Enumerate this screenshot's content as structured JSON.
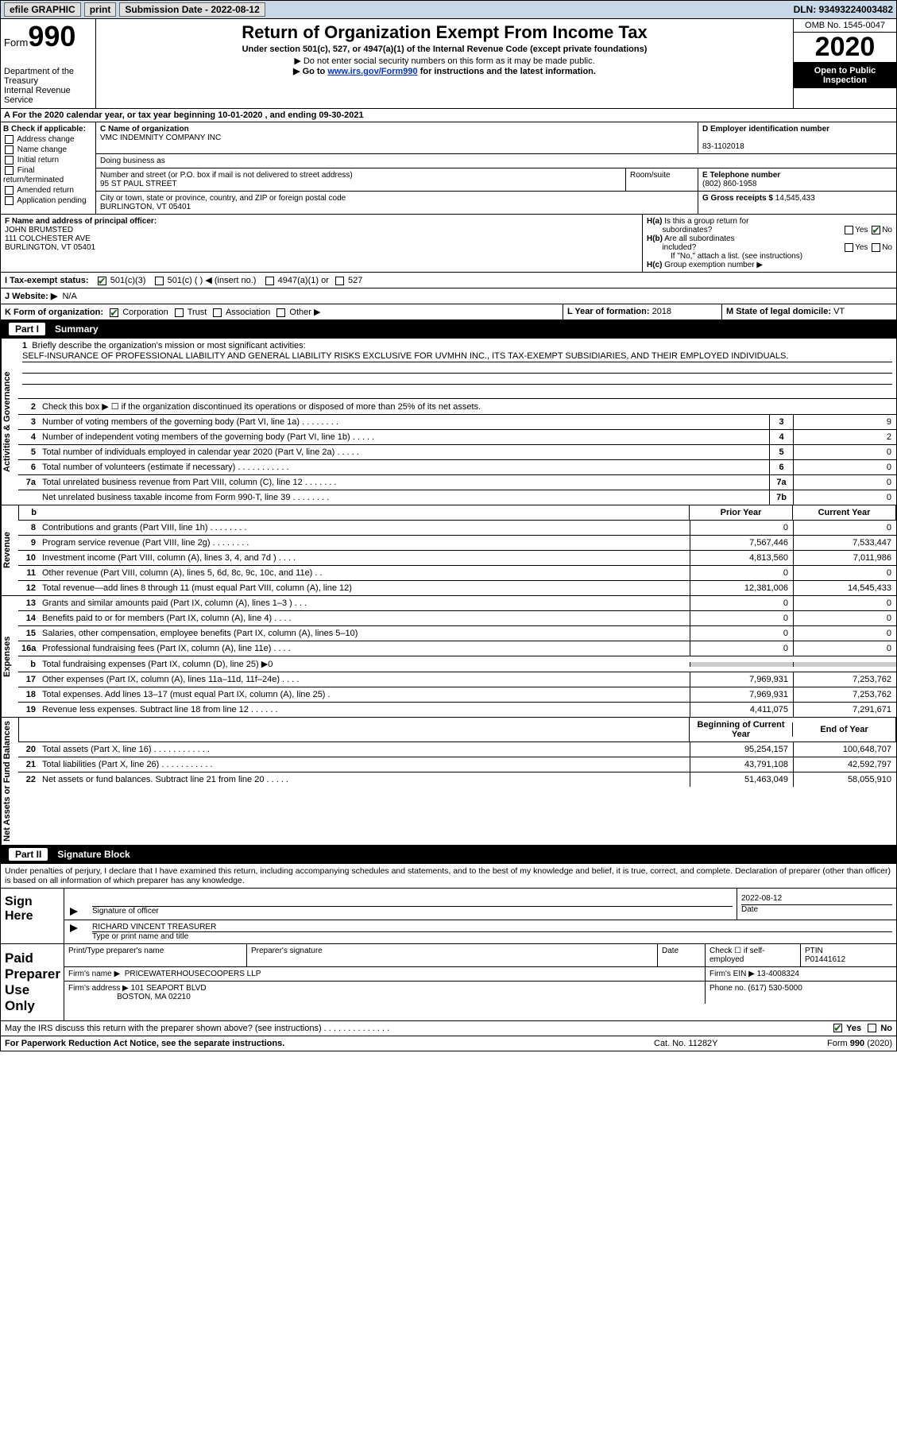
{
  "topbar": {
    "efile": "efile GRAPHIC",
    "print": "print",
    "sub_date_label": "Submission Date - 2022-08-12",
    "dln": "DLN: 93493224003482"
  },
  "header": {
    "form": "Form",
    "num": "990",
    "dept": "Department of the Treasury",
    "irs": "Internal Revenue Service",
    "title": "Return of Organization Exempt From Income Tax",
    "subtitle": "Under section 501(c), 527, or 4947(a)(1) of the Internal Revenue Code (except private foundations)",
    "note1": "▶ Do not enter social security numbers on this form as it may be made public.",
    "note2_pre": "▶ Go to ",
    "note2_link": "www.irs.gov/Form990",
    "note2_post": " for instructions and the latest information.",
    "omb": "OMB No. 1545-0047",
    "year": "2020",
    "inspect": "Open to Public Inspection"
  },
  "calendar": "A For the 2020 calendar year, or tax year beginning 10-01-2020    , and ending 09-30-2021",
  "section_b": {
    "label": "B Check if applicable:",
    "addr": "Address change",
    "name": "Name change",
    "initial": "Initial return",
    "final": "Final return/terminated",
    "amended": "Amended return",
    "app": "Application pending"
  },
  "org": {
    "c_label": "C Name of organization",
    "name": "VMC INDEMNITY COMPANY INC",
    "dba": "Doing business as",
    "addr_label": "Number and street (or P.O. box if mail is not delivered to street address)",
    "room_label": "Room/suite",
    "addr": "95 ST PAUL STREET",
    "city_label": "City or town, state or province, country, and ZIP or foreign postal code",
    "city": "BURLINGTON, VT  05401"
  },
  "right_info": {
    "d_label": "D Employer identification number",
    "ein": "83-1102018",
    "e_label": "E Telephone number",
    "phone": "(802) 860-1958",
    "g_label": "G Gross receipts $",
    "gross": "14,545,433"
  },
  "officer": {
    "f_label": "F Name and address of principal officer:",
    "name": "JOHN BRUMSTED",
    "addr1": "111 COLCHESTER AVE",
    "addr2": "BURLINGTON, VT  05401"
  },
  "h_block": {
    "ha": "H(a)  Is this a group return for subordinates?",
    "hb": "H(b)  Are all subordinates included?",
    "hb_note": "If \"No,\" attach a list. (see instructions)",
    "hc": "H(c)  Group exemption number ▶",
    "yes": "Yes",
    "no": "No"
  },
  "i_row": {
    "label": "I   Tax-exempt status:",
    "c3": "501(c)(3)",
    "c": "501(c) (  ) ◀ (insert no.)",
    "a1": "4947(a)(1) or",
    "527": "527"
  },
  "j_row": {
    "label": "J   Website: ▶",
    "val": "N/A"
  },
  "k_row": {
    "label": "K Form of organization:",
    "corp": "Corporation",
    "trust": "Trust",
    "assoc": "Association",
    "other": "Other ▶",
    "l_label": "L Year of formation:",
    "l_val": "2018",
    "m_label": "M State of legal domicile:",
    "m_val": "VT"
  },
  "parts": {
    "p1": "Part I",
    "p1_title": "Summary",
    "p2": "Part II",
    "p2_title": "Signature Block"
  },
  "vtabs": {
    "gov": "Activities & Governance",
    "rev": "Revenue",
    "exp": "Expenses",
    "net": "Net Assets or Fund Balances"
  },
  "line1": {
    "num": "1",
    "label": "Briefly describe the organization's mission or most significant activities:",
    "text": "SELF-INSURANCE OF PROFESSIONAL LIABILITY AND GENERAL LIABILITY RISKS EXCLUSIVE FOR UVMHN INC., ITS TAX-EXEMPT SUBSIDIARIES, AND THEIR EMPLOYED INDIVIDUALS."
  },
  "line2": {
    "num": "2",
    "label": "Check this box ▶ ☐  if the organization discontinued its operations or disposed of more than 25% of its net assets."
  },
  "gov_lines": [
    {
      "n": "3",
      "d": "Number of voting members of the governing body (Part VI, line 1a)  .    .    .    .    .    .    .    .",
      "b": "3",
      "v": "9"
    },
    {
      "n": "4",
      "d": "Number of independent voting members of the governing body (Part VI, line 1b)  .    .    .    .    .",
      "b": "4",
      "v": "2"
    },
    {
      "n": "5",
      "d": "Total number of individuals employed in calendar year 2020 (Part V, line 2a)  .    .    .    .    .",
      "b": "5",
      "v": "0"
    },
    {
      "n": "6",
      "d": "Total number of volunteers (estimate if necessary)  .    .    .    .    .    .    .    .    .    .    .",
      "b": "6",
      "v": "0"
    },
    {
      "n": "7a",
      "d": "Total unrelated business revenue from Part VIII, column (C), line 12  .    .    .    .    .    .    .",
      "b": "7a",
      "v": "0"
    },
    {
      "n": "",
      "d": "Net unrelated business taxable income from Form 990-T, line 39   .    .    .    .    .    .    .    .",
      "b": "7b",
      "v": "0"
    }
  ],
  "col_headers": {
    "b": "b",
    "py": "Prior Year",
    "cy": "Current Year"
  },
  "rev_lines": [
    {
      "n": "8",
      "d": "Contributions and grants (Part VIII, line 1h)   .    .    .    .    .    .    .    .",
      "py": "0",
      "cy": "0"
    },
    {
      "n": "9",
      "d": "Program service revenue (Part VIII, line 2g)  .    .    .    .    .    .    .    .",
      "py": "7,567,446",
      "cy": "7,533,447"
    },
    {
      "n": "10",
      "d": "Investment income (Part VIII, column (A), lines 3, 4, and 7d )  .    .    .    .",
      "py": "4,813,560",
      "cy": "7,011,986"
    },
    {
      "n": "11",
      "d": "Other revenue (Part VIII, column (A), lines 5, 6d, 8c, 9c, 10c, and 11e)   .    .",
      "py": "0",
      "cy": "0"
    },
    {
      "n": "12",
      "d": "Total revenue—add lines 8 through 11 (must equal Part VIII, column (A), line 12)",
      "py": "12,381,006",
      "cy": "14,545,433"
    }
  ],
  "exp_lines": [
    {
      "n": "13",
      "d": "Grants and similar amounts paid (Part IX, column (A), lines 1–3 )  .    .    .",
      "py": "0",
      "cy": "0"
    },
    {
      "n": "14",
      "d": "Benefits paid to or for members (Part IX, column (A), line 4)   .    .    .    .",
      "py": "0",
      "cy": "0"
    },
    {
      "n": "15",
      "d": "Salaries, other compensation, employee benefits (Part IX, column (A), lines 5–10)",
      "py": "0",
      "cy": "0"
    },
    {
      "n": "16a",
      "d": "Professional fundraising fees (Part IX, column (A), line 11e)  .    .    .    .",
      "py": "0",
      "cy": "0"
    },
    {
      "n": "b",
      "d": "Total fundraising expenses (Part IX, column (D), line 25) ▶0",
      "py": "",
      "cy": "",
      "shade": true
    },
    {
      "n": "17",
      "d": "Other expenses (Part IX, column (A), lines 11a–11d, 11f–24e)  .    .    .    .",
      "py": "7,969,931",
      "cy": "7,253,762"
    },
    {
      "n": "18",
      "d": "Total expenses. Add lines 13–17 (must equal Part IX, column (A), line 25)  .",
      "py": "7,969,931",
      "cy": "7,253,762"
    },
    {
      "n": "19",
      "d": "Revenue less expenses. Subtract line 18 from line 12  .    .    .    .    .    .",
      "py": "4,411,075",
      "cy": "7,291,671"
    }
  ],
  "net_header": {
    "py": "Beginning of Current Year",
    "cy": "End of Year"
  },
  "net_lines": [
    {
      "n": "20",
      "d": "Total assets (Part X, line 16)  .    .    .    .    .    .    .    .    .    .    .    .",
      "py": "95,254,157",
      "cy": "100,648,707"
    },
    {
      "n": "21",
      "d": "Total liabilities (Part X, line 26)  .    .    .    .    .    .    .    .    .    .    .",
      "py": "43,791,108",
      "cy": "42,592,797"
    },
    {
      "n": "22",
      "d": "Net assets or fund balances. Subtract line 21 from line 20  .    .    .    .    .",
      "py": "51,463,049",
      "cy": "58,055,910"
    }
  ],
  "sig_intro": "Under penalties of perjury, I declare that I have examined this return, including accompanying schedules and statements, and to the best of my knowledge and belief, it is true, correct, and complete. Declaration of preparer (other than officer) is based on all information of which preparer has any knowledge.",
  "sign": {
    "label": "Sign Here",
    "sig_officer": "Signature of officer",
    "date": "2022-08-12",
    "date_label": "Date",
    "name": "RICHARD VINCENT TREASURER",
    "name_label": "Type or print name and title"
  },
  "paid": {
    "label": "Paid Preparer Use Only",
    "print_label": "Print/Type preparer's name",
    "sig_label": "Preparer's signature",
    "date_label": "Date",
    "check_label": "Check ☐ if self-employed",
    "ptin_label": "PTIN",
    "ptin": "P01441612",
    "firm_name_label": "Firm's name    ▶",
    "firm_name": "PRICEWATERHOUSECOOPERS LLP",
    "firm_ein_label": "Firm's EIN ▶",
    "firm_ein": "13-4008324",
    "firm_addr_label": "Firm's address ▶",
    "firm_addr1": "101 SEAPORT BLVD",
    "firm_addr2": "BOSTON, MA  02210",
    "phone_label": "Phone no.",
    "phone": "(617) 530-5000"
  },
  "discuss": {
    "text": "May the IRS discuss this return with the preparer shown above? (see instructions)   .    .    .    .    .    .    .    .    .    .    .    .    .    .",
    "yes": "Yes",
    "no": "No"
  },
  "footer": {
    "left": "For Paperwork Reduction Act Notice, see the separate instructions.",
    "mid": "Cat. No. 11282Y",
    "right": "Form 990 (2020)"
  }
}
